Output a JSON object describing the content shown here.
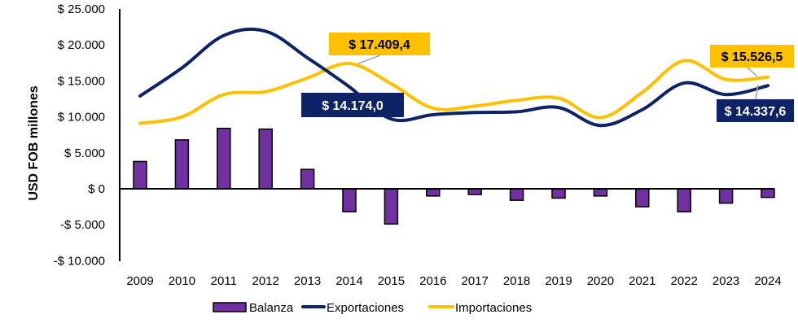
{
  "chart_data": {
    "type": "bar+line",
    "ylabel": "USD FOB millones",
    "xlabel": "",
    "ylim": [
      -10000,
      25000
    ],
    "yticks": [
      {
        "value": 25000,
        "label": "$ 25.000"
      },
      {
        "value": 20000,
        "label": "$ 20.000"
      },
      {
        "value": 15000,
        "label": "$ 15.000"
      },
      {
        "value": 10000,
        "label": "$ 10.000"
      },
      {
        "value": 5000,
        "label": "$ 5.000"
      },
      {
        "value": 0,
        "label": "$ 0"
      },
      {
        "value": -5000,
        "label": "-$ 5.000"
      },
      {
        "value": -10000,
        "label": "-$ 10.000"
      }
    ],
    "categories": [
      "2009",
      "2010",
      "2011",
      "2012",
      "2013",
      "2014",
      "2015",
      "2016",
      "2017",
      "2018",
      "2019",
      "2020",
      "2021",
      "2022",
      "2023",
      "2024"
    ],
    "legend_position": "bottom",
    "series": [
      {
        "name": "Balanza",
        "kind": "bar",
        "color": "#7030a0",
        "values": [
          3800,
          6800,
          8400,
          8300,
          2700,
          -3200,
          -4900,
          -1000,
          -800,
          -1600,
          -1300,
          -1000,
          -2500,
          -3200,
          -2000,
          -1200
        ]
      },
      {
        "name": "Exportaciones",
        "kind": "line",
        "color": "#0d2366",
        "values": [
          12900,
          16800,
          21300,
          21900,
          18200,
          14174.0,
          9700,
          10300,
          10600,
          10700,
          11300,
          8800,
          11000,
          14700,
          13100,
          14337.6
        ]
      },
      {
        "name": "Importaciones",
        "kind": "line",
        "color": "#ffc000",
        "values": [
          9100,
          10000,
          13100,
          13500,
          15400,
          17409.4,
          14600,
          11200,
          11500,
          12300,
          12600,
          9900,
          13400,
          17800,
          15200,
          15526.5
        ]
      }
    ],
    "annotations": [
      {
        "series": "Importaciones",
        "category": "2014",
        "text": "$ 17.409,4",
        "bg": "#ffc000",
        "fg": "#000000"
      },
      {
        "series": "Exportaciones",
        "category": "2014",
        "text": "$ 14.174,0",
        "bg": "#0d2366",
        "fg": "#ffffff"
      },
      {
        "series": "Importaciones",
        "category": "2024",
        "text": "$ 15.526,5",
        "bg": "#ffc000",
        "fg": "#000000"
      },
      {
        "series": "Exportaciones",
        "category": "2024",
        "text": "$ 14.337,6",
        "bg": "#0d2366",
        "fg": "#ffffff"
      }
    ]
  }
}
